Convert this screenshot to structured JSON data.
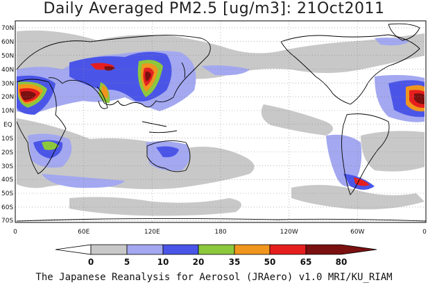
{
  "title": "Daily Averaged PM2.5 [ug/m3]: 21Oct2011",
  "credit": "The Japanese Reanalysis for Aerosol (JRAero) v1.0 MRI/KU_RIAM",
  "lat_labels": [
    "70N",
    "60N",
    "50N",
    "40N",
    "30N",
    "20N",
    "10N",
    "EQ",
    "10S",
    "20S",
    "30S",
    "40S",
    "50S",
    "60S",
    "70S"
  ],
  "lon_labels": [
    "0",
    "60E",
    "120E",
    "180",
    "120W",
    "60W",
    "0"
  ],
  "colorbar": {
    "ticks": [
      "0",
      "5",
      "10",
      "20",
      "35",
      "50",
      "65",
      "80"
    ],
    "colors": [
      "#ffffff",
      "#c8c8c8",
      "#a3a8f0",
      "#4a55e8",
      "#8cc83c",
      "#f0961e",
      "#e61e1e",
      "#7a1010"
    ]
  }
}
